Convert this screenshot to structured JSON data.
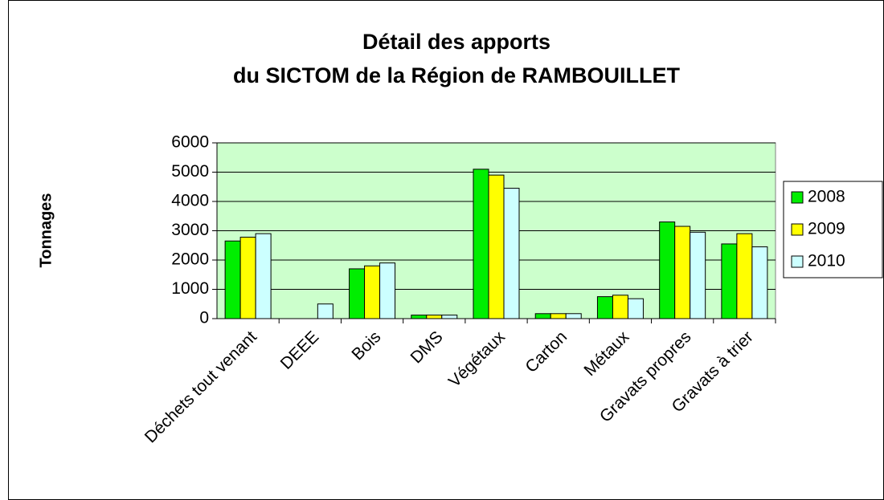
{
  "chart_data": {
    "type": "bar",
    "title": [
      "Détail des apports",
      "du SICTOM de la Région de RAMBOUILLET"
    ],
    "y_label": "Tonnages",
    "categories": [
      "Déchets tout venant",
      "DEEE",
      "Bois",
      "DMS",
      "Végétaux",
      "Carton",
      "Métaux",
      "Gravats propres",
      "Gravats à trier"
    ],
    "series": [
      {
        "name": "2008",
        "color": "#00ee00",
        "values": [
          2650,
          0,
          1700,
          120,
          5100,
          170,
          750,
          3300,
          2550
        ]
      },
      {
        "name": "2009",
        "color": "#ffff00",
        "values": [
          2780,
          0,
          1800,
          120,
          4900,
          170,
          800,
          3150,
          2900
        ]
      },
      {
        "name": "2010",
        "color": "#ccffff",
        "values": [
          2900,
          500,
          1900,
          120,
          4450,
          170,
          680,
          2950,
          2450
        ]
      }
    ],
    "ylim": [
      0,
      6000
    ],
    "yticks": [
      0,
      1000,
      2000,
      3000,
      4000,
      5000,
      6000
    ],
    "grid": true,
    "legend": "right"
  }
}
